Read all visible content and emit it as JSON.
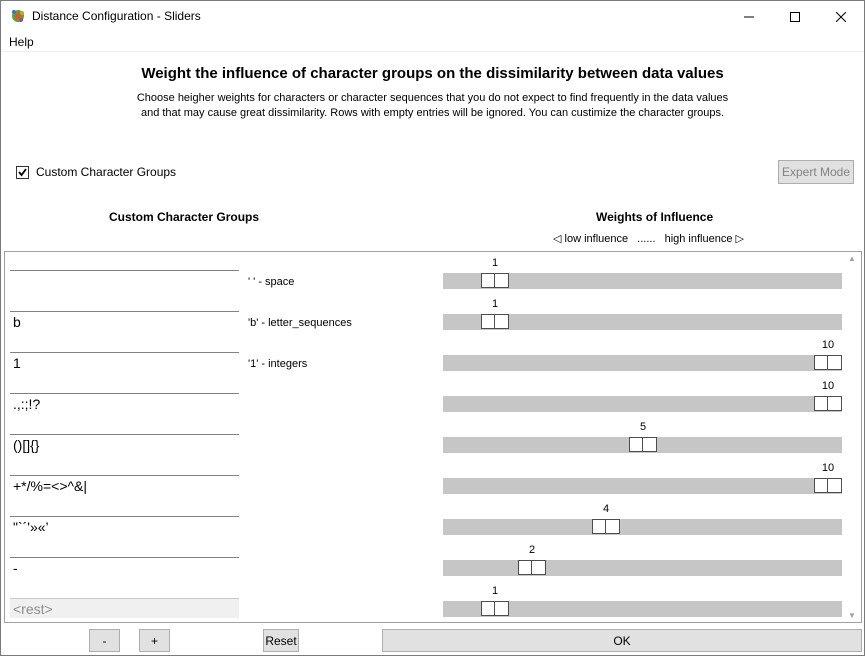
{
  "window": {
    "title": "Distance Configuration - Sliders",
    "icon": "gear-globe-icon"
  },
  "menu": {
    "help": "Help"
  },
  "heading": "Weight the influence of character groups on the dissimilarity between data values",
  "description_line1": "Choose heigher weights for characters or character sequences that you do not expect to find frequently in the data values",
  "description_line2": "and that may cause great dissimilarity. Rows with empty entries will be ignored. You can custimize the character groups.",
  "custom_groups_checkbox": {
    "label": "Custom Character Groups",
    "checked": true
  },
  "expert_mode_label": "Expert Mode",
  "col_left": "Custom Character Groups",
  "col_right": "Weights of Influence",
  "low_influence": "◁ low influence",
  "dots": "......",
  "high_influence": "high influence ▷",
  "rows": [
    {
      "value": "",
      "label": "' ' - space",
      "weight": 1
    },
    {
      "value": "b",
      "label": "'b' - letter_sequences",
      "weight": 1
    },
    {
      "value": "1",
      "label": "'1' - integers",
      "weight": 10
    },
    {
      "value": ".,:;!?",
      "label": "",
      "weight": 10
    },
    {
      "value": "()[]{}",
      "label": "",
      "weight": 5
    },
    {
      "value": "+*/%=<>^&|",
      "label": "",
      "weight": 10
    },
    {
      "value": "\"`´'»«’",
      "label": "",
      "weight": 4
    },
    {
      "value": "-",
      "label": "",
      "weight": 2
    },
    {
      "value": "<rest>",
      "label": "",
      "weight": 1,
      "disabled": true
    }
  ],
  "slider_range": [
    1,
    10
  ],
  "buttons": {
    "minus": "-",
    "plus": "+",
    "reset": "Reset",
    "ok": "OK"
  }
}
